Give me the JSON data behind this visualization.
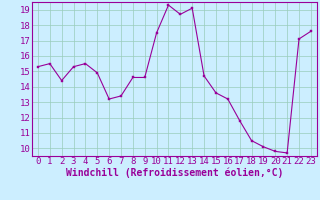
{
  "x": [
    0,
    1,
    2,
    3,
    4,
    5,
    6,
    7,
    8,
    9,
    10,
    11,
    12,
    13,
    14,
    15,
    16,
    17,
    18,
    19,
    20,
    21,
    22,
    23
  ],
  "y": [
    15.3,
    15.5,
    14.4,
    15.3,
    15.5,
    14.9,
    13.2,
    13.4,
    14.6,
    14.6,
    17.5,
    19.3,
    18.7,
    19.1,
    14.7,
    13.6,
    13.2,
    11.8,
    10.5,
    10.1,
    9.8,
    9.7,
    17.1,
    17.6
  ],
  "line_color": "#990099",
  "marker_color": "#990099",
  "bg_color": "#cceeff",
  "grid_color": "#99ccbb",
  "xlabel": "Windchill (Refroidissement éolien,°C)",
  "xlim": [
    -0.5,
    23.5
  ],
  "ylim": [
    9.5,
    19.5
  ],
  "yticks": [
    10,
    11,
    12,
    13,
    14,
    15,
    16,
    17,
    18,
    19
  ],
  "xticks": [
    0,
    1,
    2,
    3,
    4,
    5,
    6,
    7,
    8,
    9,
    10,
    11,
    12,
    13,
    14,
    15,
    16,
    17,
    18,
    19,
    20,
    21,
    22,
    23
  ],
  "tick_label_color": "#990099",
  "xlabel_color": "#990099",
  "axis_color": "#990099",
  "font_size": 6.5,
  "xlabel_fontsize": 7.0
}
